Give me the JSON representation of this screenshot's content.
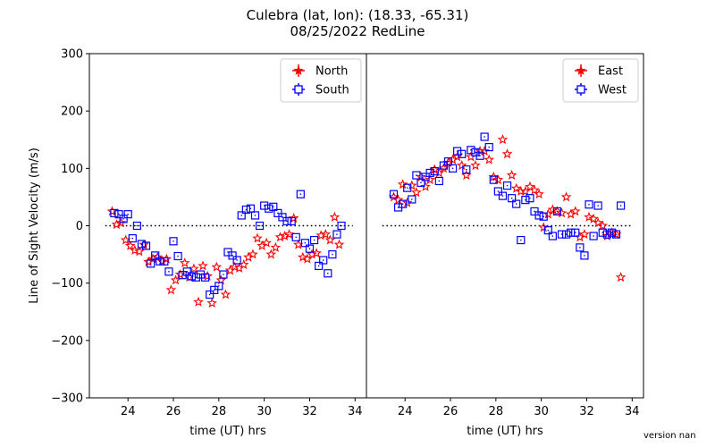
{
  "title": "Culebra  (lat, lon):  (18.33, -65.31)",
  "subtitle": "08/25/2022 RedLine",
  "version_note": "version nan",
  "colors": {
    "red": "#ff0000",
    "blue": "#0000ff",
    "frame": "#000000"
  },
  "chart_data": [
    {
      "type": "scatter",
      "xlabel": "time (UT) hrs",
      "ylabel": "Line of Sight Velocity (m/s)",
      "xlim": [
        22.3,
        34.5
      ],
      "ylim": [
        -300,
        300
      ],
      "xticks": [
        24,
        26,
        28,
        30,
        32,
        34
      ],
      "yticks": [
        -300,
        -200,
        -100,
        0,
        100,
        200,
        300
      ],
      "zero_line": {
        "y": 0,
        "x_range": [
          23.0,
          33.9
        ],
        "style": "dotted"
      },
      "legend": "upper right",
      "series": [
        {
          "name": "North",
          "color": "#ff0000",
          "marker": "star",
          "x": [
            23.3,
            23.5,
            23.7,
            23.9,
            24.1,
            24.3,
            24.5,
            24.7,
            24.9,
            25.1,
            25.3,
            25.5,
            25.7,
            25.9,
            26.1,
            26.3,
            26.5,
            26.7,
            26.9,
            27.1,
            27.3,
            27.5,
            27.7,
            27.9,
            28.1,
            28.3,
            28.5,
            28.7,
            28.9,
            29.1,
            29.3,
            29.5,
            29.7,
            29.9,
            30.1,
            30.3,
            30.5,
            30.7,
            30.9,
            31.1,
            31.3,
            31.5,
            31.7,
            31.9,
            32.1,
            32.3,
            32.5,
            32.7,
            32.9,
            33.1,
            33.3
          ],
          "y": [
            25,
            2,
            5,
            -25,
            -35,
            -43,
            -45,
            -33,
            -63,
            -58,
            -55,
            -62,
            -58,
            -112,
            -95,
            -85,
            -65,
            -90,
            -75,
            -133,
            -70,
            -88,
            -135,
            -72,
            -95,
            -120,
            -78,
            -72,
            -74,
            -68,
            -55,
            -50,
            -22,
            -35,
            -30,
            -50,
            -38,
            -20,
            -18,
            -15,
            13,
            -33,
            -55,
            -58,
            -50,
            -48,
            -17,
            -15,
            -25,
            15,
            -33
          ]
        },
        {
          "name": "South",
          "color": "#0000ff",
          "marker": "square",
          "x": [
            23.4,
            23.6,
            23.8,
            24.0,
            24.2,
            24.4,
            24.6,
            24.8,
            25.0,
            25.2,
            25.4,
            25.6,
            25.8,
            26.0,
            26.2,
            26.4,
            26.6,
            26.8,
            27.0,
            27.2,
            27.4,
            27.6,
            27.8,
            28.0,
            28.2,
            28.4,
            28.6,
            28.8,
            29.0,
            29.2,
            29.4,
            29.6,
            29.8,
            30.0,
            30.2,
            30.4,
            30.6,
            30.8,
            31.0,
            31.2,
            31.4,
            31.6,
            31.8,
            32.0,
            32.2,
            32.4,
            32.6,
            32.8,
            33.0,
            33.2,
            33.4
          ],
          "y": [
            22,
            20,
            12,
            20,
            -22,
            0,
            -32,
            -35,
            -66,
            -52,
            -62,
            -62,
            -80,
            -27,
            -53,
            -86,
            -80,
            -88,
            -90,
            -85,
            -90,
            -120,
            -112,
            -105,
            -85,
            -46,
            -52,
            -60,
            18,
            28,
            30,
            18,
            0,
            35,
            30,
            33,
            22,
            15,
            8,
            8,
            -20,
            55,
            -30,
            -40,
            -25,
            -70,
            -60,
            -83,
            -50,
            -15,
            0
          ]
        }
      ]
    },
    {
      "type": "scatter",
      "xlabel": "time (UT) hrs",
      "ylabel": "",
      "xlim": [
        22.3,
        34.5
      ],
      "ylim": [
        -300,
        300
      ],
      "xticks": [
        24,
        26,
        28,
        30,
        32,
        34
      ],
      "yticks": [],
      "zero_line": {
        "y": 0,
        "x_range": [
          23.0,
          34.0
        ],
        "style": "dotted"
      },
      "legend": "upper right",
      "series": [
        {
          "name": "East",
          "color": "#ff0000",
          "marker": "star",
          "x": [
            23.5,
            23.7,
            23.9,
            24.1,
            24.3,
            24.5,
            24.7,
            24.9,
            25.1,
            25.3,
            25.5,
            25.7,
            25.9,
            26.1,
            26.3,
            26.5,
            26.7,
            26.9,
            27.1,
            27.3,
            27.5,
            27.7,
            27.9,
            28.1,
            28.3,
            28.5,
            28.7,
            28.9,
            29.1,
            29.3,
            29.5,
            29.7,
            29.9,
            30.1,
            30.3,
            30.5,
            30.7,
            30.9,
            31.1,
            31.3,
            31.5,
            31.7,
            31.9,
            32.1,
            32.3,
            32.5,
            32.7,
            32.9,
            33.1,
            33.3,
            33.5
          ],
          "y": [
            50,
            45,
            72,
            40,
            70,
            58,
            85,
            68,
            80,
            98,
            92,
            100,
            110,
            115,
            120,
            105,
            88,
            120,
            105,
            130,
            130,
            115,
            85,
            80,
            150,
            125,
            88,
            65,
            60,
            60,
            68,
            62,
            55,
            -3,
            20,
            28,
            25,
            22,
            50,
            20,
            25,
            -20,
            -15,
            15,
            12,
            5,
            0,
            -18,
            -12,
            -15,
            -90
          ]
        },
        {
          "name": "West",
          "color": "#0000ff",
          "marker": "square",
          "x": [
            23.5,
            23.7,
            23.9,
            24.1,
            24.3,
            24.5,
            24.7,
            24.9,
            25.1,
            25.3,
            25.5,
            25.7,
            25.9,
            26.1,
            26.3,
            26.5,
            26.7,
            26.9,
            27.1,
            27.3,
            27.5,
            27.7,
            27.9,
            28.1,
            28.3,
            28.5,
            28.7,
            28.9,
            29.1,
            29.3,
            29.5,
            29.7,
            29.9,
            30.1,
            30.3,
            30.5,
            30.7,
            30.9,
            31.1,
            31.3,
            31.5,
            31.7,
            31.9,
            32.1,
            32.3,
            32.5,
            32.7,
            32.9,
            33.1,
            33.3,
            33.5
          ],
          "y": [
            55,
            32,
            38,
            66,
            46,
            88,
            75,
            85,
            92,
            95,
            78,
            105,
            112,
            100,
            130,
            125,
            98,
            132,
            128,
            122,
            155,
            137,
            80,
            60,
            52,
            70,
            48,
            38,
            -25,
            45,
            48,
            25,
            18,
            16,
            -8,
            -18,
            25,
            -15,
            -15,
            -12,
            -12,
            -38,
            -52,
            37,
            -18,
            35,
            -12,
            -15,
            -12,
            -15,
            35
          ]
        }
      ]
    }
  ]
}
